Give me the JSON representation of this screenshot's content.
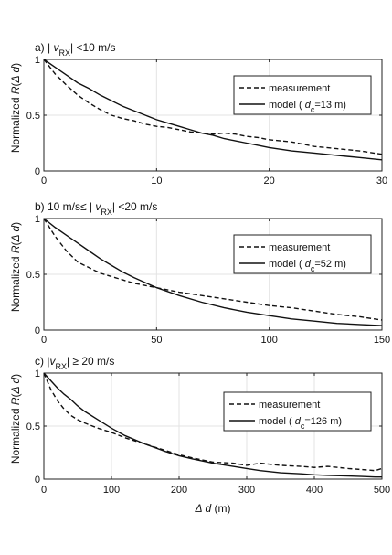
{
  "figure": {
    "xlabel": "Δ d (m)",
    "ylabel": "Normalized  R(Δ d)"
  },
  "chart_data": [
    {
      "type": "line",
      "title": "a) | vRX| <10 m/s",
      "xlabel": "",
      "ylabel": "Normalized  R(Δ d)",
      "xlim": [
        0,
        30
      ],
      "ylim": [
        0,
        1
      ],
      "xticks": [
        "0",
        "10",
        "20",
        "30"
      ],
      "yticks": [
        "0",
        "0.5",
        "1"
      ],
      "grid": true,
      "legend_position": "top-right",
      "series": [
        {
          "name": "measurement",
          "style": "dashed",
          "x": [
            0,
            1,
            2,
            3,
            4,
            5,
            6,
            7,
            8,
            9,
            10,
            11,
            12,
            13,
            14,
            15,
            16,
            17,
            18,
            19,
            20,
            22,
            24,
            26,
            28,
            30
          ],
          "y": [
            1.0,
            0.87,
            0.77,
            0.68,
            0.61,
            0.55,
            0.5,
            0.47,
            0.45,
            0.42,
            0.4,
            0.39,
            0.37,
            0.35,
            0.34,
            0.33,
            0.34,
            0.33,
            0.31,
            0.3,
            0.28,
            0.26,
            0.22,
            0.2,
            0.18,
            0.15
          ]
        },
        {
          "name": "model ( dc=13 m)",
          "style": "solid",
          "x": [
            0,
            1,
            2,
            3,
            4,
            5,
            6,
            7,
            8,
            9,
            10,
            11,
            12,
            13,
            14,
            15,
            16,
            17,
            18,
            19,
            20,
            22,
            24,
            26,
            28,
            30
          ],
          "y": [
            1.0,
            0.93,
            0.86,
            0.79,
            0.74,
            0.68,
            0.63,
            0.58,
            0.54,
            0.5,
            0.46,
            0.43,
            0.4,
            0.37,
            0.34,
            0.32,
            0.29,
            0.27,
            0.25,
            0.23,
            0.21,
            0.18,
            0.16,
            0.14,
            0.12,
            0.1
          ]
        }
      ]
    },
    {
      "type": "line",
      "title": "b) 10 m/s≤ | vRX| <20 m/s",
      "xlabel": "",
      "ylabel": "Normalized  R(Δ d)",
      "xlim": [
        0,
        150
      ],
      "ylim": [
        0,
        1
      ],
      "xticks": [
        "0",
        "50",
        "100",
        "150"
      ],
      "yticks": [
        "0",
        "0.5",
        "1"
      ],
      "grid": true,
      "legend_position": "top-right",
      "series": [
        {
          "name": "measurement",
          "style": "dashed",
          "x": [
            0,
            5,
            10,
            15,
            20,
            25,
            30,
            35,
            40,
            50,
            60,
            70,
            80,
            90,
            100,
            110,
            120,
            130,
            140,
            150
          ],
          "y": [
            1.0,
            0.84,
            0.71,
            0.61,
            0.56,
            0.51,
            0.48,
            0.45,
            0.42,
            0.38,
            0.34,
            0.31,
            0.28,
            0.25,
            0.22,
            0.2,
            0.17,
            0.14,
            0.12,
            0.09
          ]
        },
        {
          "name": "model ( dc=52 m)",
          "style": "solid",
          "x": [
            0,
            5,
            10,
            15,
            20,
            25,
            30,
            35,
            40,
            50,
            60,
            70,
            80,
            90,
            100,
            110,
            120,
            130,
            140,
            150
          ],
          "y": [
            1.0,
            0.92,
            0.85,
            0.78,
            0.71,
            0.64,
            0.58,
            0.52,
            0.47,
            0.38,
            0.31,
            0.25,
            0.2,
            0.16,
            0.13,
            0.1,
            0.08,
            0.06,
            0.05,
            0.04
          ]
        }
      ]
    },
    {
      "type": "line",
      "title": "c) |vRX| ≥ 20 m/s",
      "xlabel": "Δ d (m)",
      "ylabel": "Normalized  R(Δ d)",
      "xlim": [
        0,
        500
      ],
      "ylim": [
        0,
        1
      ],
      "xticks": [
        "0",
        "100",
        "200",
        "300",
        "400",
        "500"
      ],
      "yticks": [
        "0",
        "0.5",
        "1"
      ],
      "grid": true,
      "legend_position": "top-right",
      "series": [
        {
          "name": "measurement",
          "style": "dashed",
          "x": [
            0,
            10,
            20,
            30,
            40,
            50,
            60,
            80,
            100,
            120,
            150,
            180,
            200,
            220,
            250,
            280,
            300,
            320,
            350,
            380,
            400,
            420,
            450,
            470,
            490,
            500
          ],
          "y": [
            1.0,
            0.85,
            0.74,
            0.66,
            0.6,
            0.56,
            0.53,
            0.48,
            0.44,
            0.39,
            0.33,
            0.27,
            0.23,
            0.2,
            0.16,
            0.15,
            0.13,
            0.15,
            0.13,
            0.12,
            0.11,
            0.12,
            0.1,
            0.09,
            0.08,
            0.1
          ]
        },
        {
          "name": "model ( dc=126 m)",
          "style": "solid",
          "x": [
            0,
            10,
            20,
            30,
            40,
            50,
            60,
            80,
            100,
            120,
            150,
            180,
            200,
            220,
            250,
            280,
            300,
            320,
            350,
            380,
            400,
            420,
            450,
            470,
            490,
            500
          ],
          "y": [
            1.0,
            0.93,
            0.86,
            0.8,
            0.75,
            0.69,
            0.64,
            0.56,
            0.48,
            0.41,
            0.33,
            0.26,
            0.22,
            0.19,
            0.15,
            0.12,
            0.1,
            0.08,
            0.06,
            0.05,
            0.04,
            0.035,
            0.03,
            0.025,
            0.02,
            0.02
          ]
        }
      ]
    }
  ]
}
